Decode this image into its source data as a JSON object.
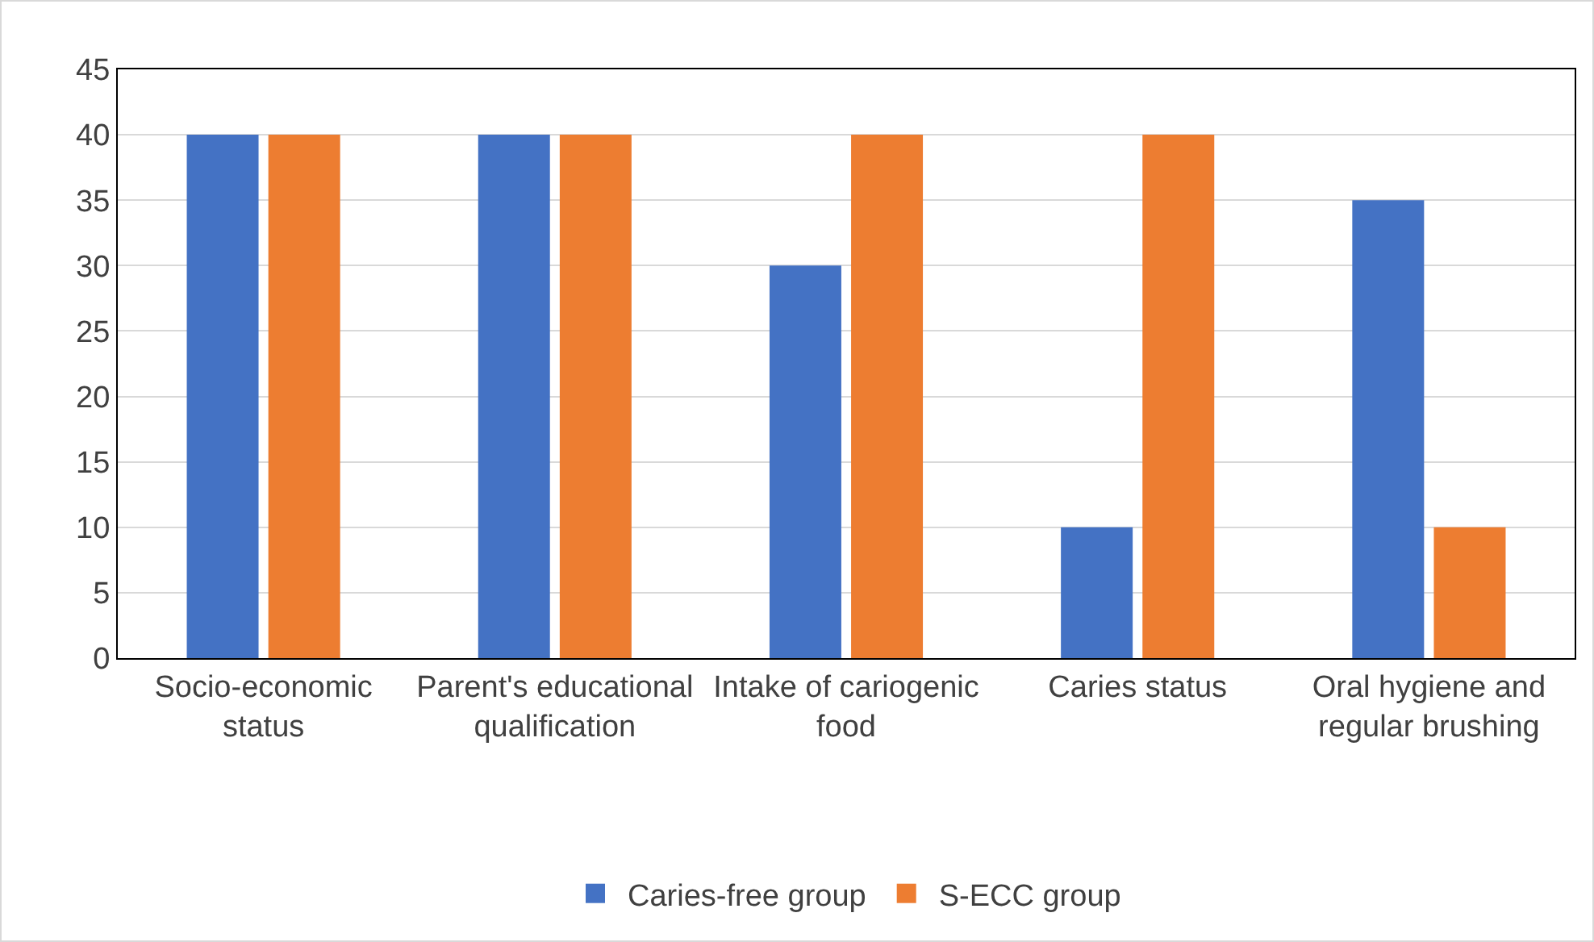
{
  "chart_data": {
    "type": "bar",
    "categories": [
      "Socio-economic status",
      "Parent's educational qualification",
      "Intake of cariogenic food",
      "Caries status",
      "Oral hygiene and regular brushing"
    ],
    "series": [
      {
        "name": "Caries-free group",
        "color": "#4472c4",
        "values": [
          40,
          40,
          30,
          10,
          35
        ]
      },
      {
        "name": "S-ECC group",
        "color": "#ed7d31",
        "values": [
          40,
          40,
          40,
          40,
          10
        ]
      }
    ],
    "ylim": [
      0,
      45
    ],
    "yticks": [
      0,
      5,
      10,
      15,
      20,
      25,
      30,
      35,
      40,
      45
    ],
    "grid": "y",
    "legend": "bottom"
  }
}
